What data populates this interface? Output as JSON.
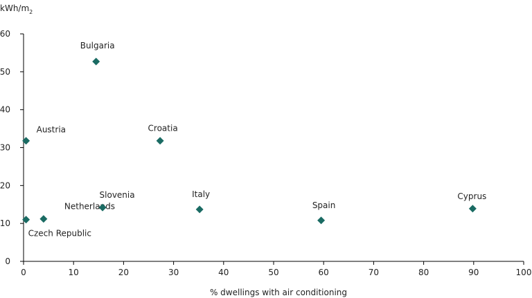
{
  "chart_data": {
    "type": "scatter",
    "title": "",
    "ylabel_unit": "kWh/m",
    "ylabel_unit_sub": "2",
    "xlabel": "% dwellings with air conditioning",
    "xlim": [
      0,
      100
    ],
    "ylim": [
      0,
      60
    ],
    "xticks": [
      "0",
      "10",
      "20",
      "30",
      "40",
      "50",
      "60",
      "70",
      "80",
      "90",
      "100"
    ],
    "yticks": [
      "0",
      "10",
      "20",
      "30",
      "40",
      "50",
      "60"
    ],
    "grid": false,
    "marker": "diamond",
    "marker_color": "#1a6b63",
    "points": [
      {
        "label": "Czech Republic",
        "x": 0.5,
        "y": 11.0
      },
      {
        "label": "Austria",
        "x": 0.5,
        "y": 31.8
      },
      {
        "label": "Netherlands",
        "x": 4.0,
        "y": 11.2
      },
      {
        "label": "Bulgaria",
        "x": 14.5,
        "y": 52.7
      },
      {
        "label": "Slovenia",
        "x": 15.8,
        "y": 14.2
      },
      {
        "label": "Croatia",
        "x": 27.3,
        "y": 31.8
      },
      {
        "label": "Italy",
        "x": 35.2,
        "y": 13.7
      },
      {
        "label": "Spain",
        "x": 59.5,
        "y": 10.8
      },
      {
        "label": "Cyprus",
        "x": 89.8,
        "y": 13.9
      }
    ]
  }
}
